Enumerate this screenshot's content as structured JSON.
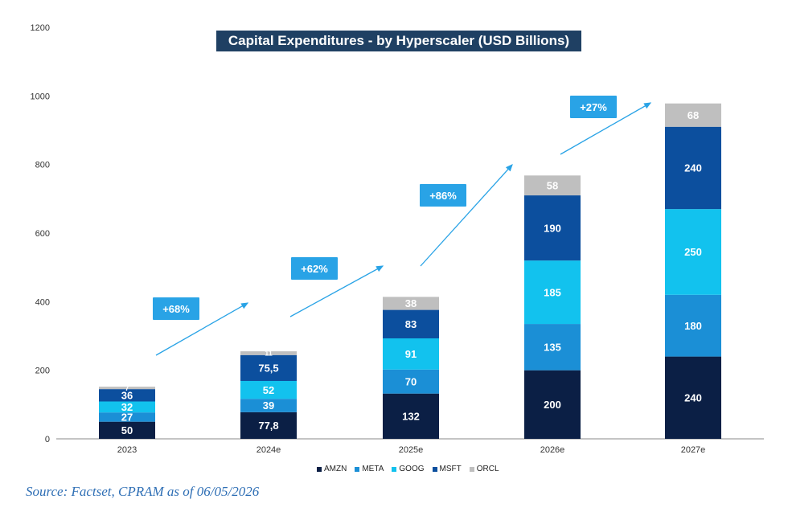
{
  "chart_data": {
    "type": "bar",
    "stacked": true,
    "title": "Capital Expenditures - by Hyperscaler (USD Billions)",
    "categories": [
      "2023",
      "2024e",
      "2025e",
      "2026e",
      "2027e"
    ],
    "ylim": [
      0,
      1200
    ],
    "yticks": [
      0,
      200,
      400,
      600,
      800,
      1000,
      1200
    ],
    "grid": false,
    "legend_position": "bottom",
    "series": [
      {
        "name": "AMZN",
        "color": "#0b1f45",
        "values": [
          50,
          77.8,
          132,
          200,
          240
        ],
        "labels": [
          "50",
          "77,8",
          "132",
          "200",
          "240"
        ]
      },
      {
        "name": "META",
        "color": "#1b8fd6",
        "values": [
          27,
          39,
          70,
          135,
          180
        ],
        "labels": [
          "27",
          "39",
          "70",
          "135",
          "180"
        ]
      },
      {
        "name": "GOOG",
        "color": "#12c2ee",
        "values": [
          32,
          52,
          91,
          185,
          250
        ],
        "labels": [
          "32",
          "52",
          "91",
          "185",
          "250"
        ]
      },
      {
        "name": "MSFT",
        "color": "#0c4f9e",
        "values": [
          36,
          75.5,
          83,
          190,
          240
        ],
        "labels": [
          "36",
          "75,5",
          "83",
          "190",
          "240"
        ]
      },
      {
        "name": "ORCL",
        "color": "#bfbfbf",
        "values": [
          7,
          11,
          38,
          58,
          68
        ],
        "labels": [
          "7",
          "11",
          "38",
          "58",
          "68"
        ]
      }
    ],
    "growth_annotations": [
      "+68%",
      "+62%",
      "+86%",
      "+27%"
    ],
    "source": "Source: Factset, CPRAM as of 06/05/2026"
  },
  "colors": {
    "title_background": "#1f4063",
    "annotation_background": "#29a3e6",
    "arrow": "#29a3e6",
    "source_text": "#2f6fb5"
  }
}
